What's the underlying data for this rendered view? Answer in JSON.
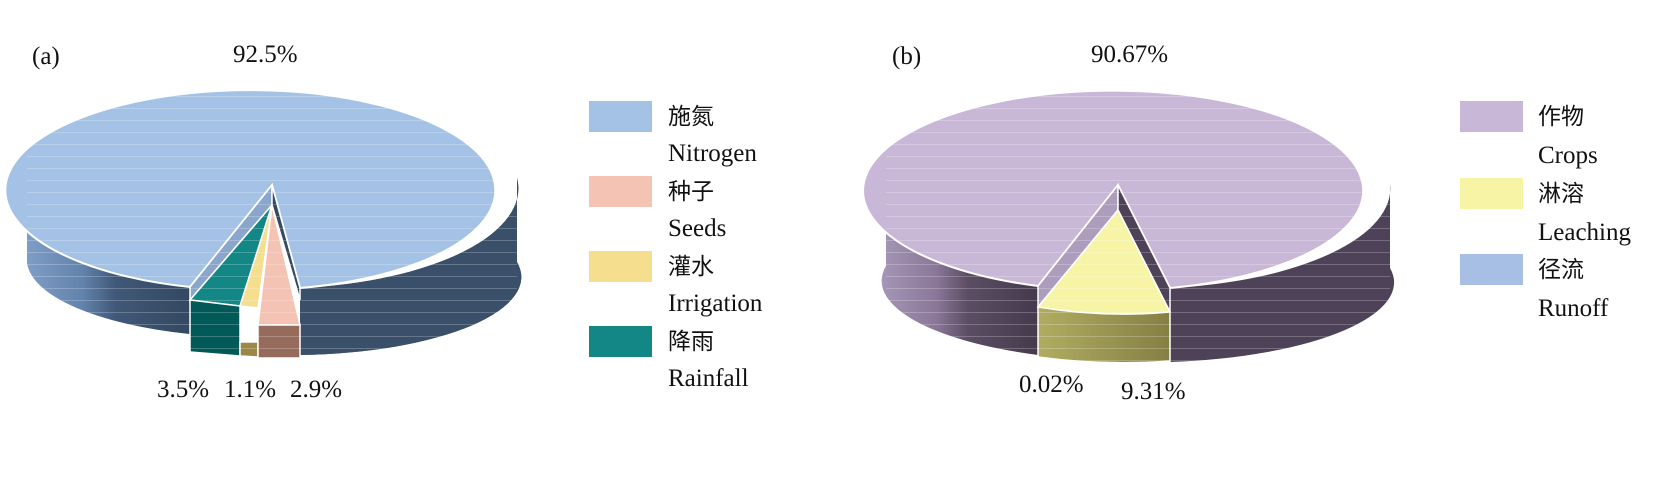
{
  "chart_data": [
    {
      "type": "pie",
      "panel_label": "(a)",
      "categories": [
        "施氮 Nitrogen",
        "种子 Seeds",
        "灌水 Irrigation",
        "降雨 Rainfall"
      ],
      "values": [
        92.5,
        2.9,
        1.1,
        3.5
      ],
      "data_labels": [
        "92.5%",
        "2.9%",
        "1.1%",
        "3.5%"
      ],
      "legend": [
        {
          "cn": "施氮",
          "en": "Nitrogen",
          "color": "#a4c2e6"
        },
        {
          "cn": "种子",
          "en": "Seeds",
          "color": "#f4c3b3"
        },
        {
          "cn": "灌水",
          "en": "Irrigation",
          "color": "#f5de8e"
        },
        {
          "cn": "降雨",
          "en": "Rainfall",
          "color": "#138786"
        }
      ],
      "legend_position": "right"
    },
    {
      "type": "pie",
      "panel_label": "(b)",
      "categories": [
        "作物 Crops",
        "淋溶 Leaching",
        "径流 Runoff"
      ],
      "values": [
        90.67,
        9.31,
        0.02
      ],
      "data_labels": [
        "90.67%",
        "9.31%",
        "0.02%"
      ],
      "legend": [
        {
          "cn": "作物",
          "en": "Crops",
          "color": "#c8b7d6"
        },
        {
          "cn": "淋溶",
          "en": "Leaching",
          "color": "#f7f4a6"
        },
        {
          "cn": "径流",
          "en": "Runoff",
          "color": "#a7bfe5"
        }
      ],
      "legend_position": "right"
    }
  ]
}
